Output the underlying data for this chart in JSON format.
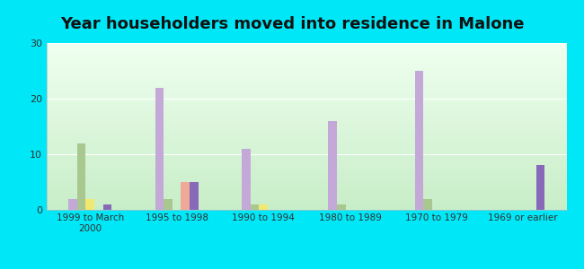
{
  "title": "Year householders moved into residence in Malone",
  "categories": [
    "1999 to March\n2000",
    "1995 to 1998",
    "1990 to 1994",
    "1980 to 1989",
    "1970 to 1979",
    "1969 or earlier"
  ],
  "series": {
    "White Non-Hispanic": [
      2,
      22,
      11,
      16,
      25,
      0
    ],
    "Black": [
      12,
      2,
      1,
      1,
      2,
      0
    ],
    "Asian": [
      2,
      0,
      1,
      0,
      0,
      0
    ],
    "Other Race": [
      0,
      5,
      0,
      0,
      0,
      0
    ],
    "Hispanic or Latino": [
      1,
      5,
      0,
      0,
      0,
      8
    ]
  },
  "colors": {
    "White Non-Hispanic": "#c4a8d8",
    "Black": "#a8c890",
    "Asian": "#f0e870",
    "Other Race": "#f0a898",
    "Hispanic or Latino": "#8868b8"
  },
  "ylim": [
    0,
    30
  ],
  "yticks": [
    0,
    10,
    20,
    30
  ],
  "outer_bg": "#00e8f8",
  "grad_top": "#f0fff0",
  "grad_bottom": "#c8eec8",
  "title_fontsize": 13,
  "bar_width": 0.1,
  "legend_fontsize": 7.5
}
